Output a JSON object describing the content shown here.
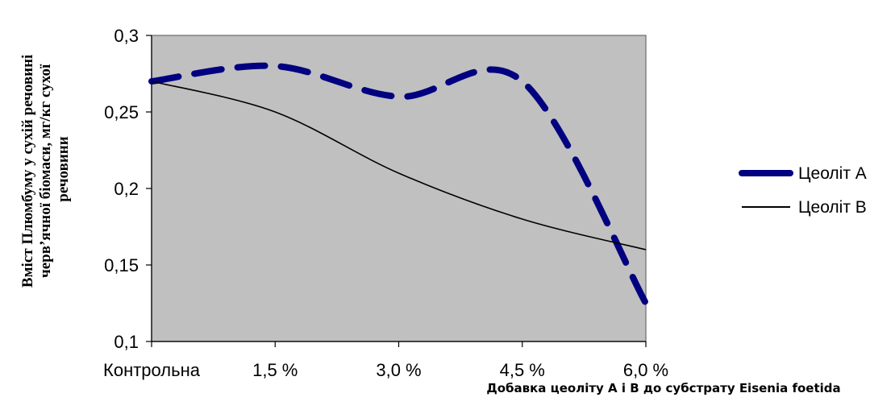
{
  "chart_data": {
    "type": "line",
    "categories": [
      "Контрольна",
      "1,5 %",
      "3,0 %",
      "4,5 %",
      "6,0 %"
    ],
    "ylim": [
      0.1,
      0.3
    ],
    "yticks": [
      0.1,
      0.15,
      0.2,
      0.25,
      0.3
    ],
    "ytick_labels": [
      "0,1",
      "0,15",
      "0,2",
      "0,25",
      "0,3"
    ],
    "ylabel_lines": [
      "Вміст Плюмбуму у сухій речовині",
      "черв’ячної біомаси, мг/кг сухої",
      "речовини"
    ],
    "xlabel": "Добавка цеоліту А і В до субстрату Eisenia foetida",
    "grid": false,
    "legend_position": "right",
    "plot_background": "#c0c0c0",
    "series": [
      {
        "name": "Цеоліт А",
        "values": [
          0.27,
          0.28,
          0.26,
          0.27,
          0.125
        ],
        "color": "#000080",
        "style": "dashed-thick"
      },
      {
        "name": "Цеоліт В",
        "values": [
          0.27,
          0.25,
          0.21,
          0.18,
          0.16
        ],
        "color": "#000000",
        "style": "solid-thin"
      }
    ]
  }
}
